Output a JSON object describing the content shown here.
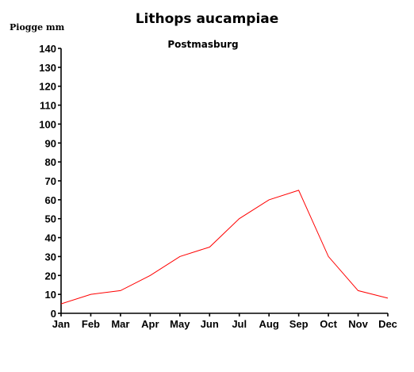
{
  "chart_data": {
    "type": "line",
    "title": "Lithops aucampiae",
    "subtitle": "Postmasburg",
    "ylabel": "Piogge mm",
    "xlabel": "",
    "categories": [
      "Jan",
      "Feb",
      "Mar",
      "Apr",
      "May",
      "Jun",
      "Jul",
      "Aug",
      "Sep",
      "Oct",
      "Nov",
      "Dec"
    ],
    "values": [
      5,
      10,
      12,
      20,
      30,
      35,
      50,
      60,
      65,
      30,
      12,
      8
    ],
    "ylim": [
      0,
      140
    ],
    "yticks": [
      "0",
      "10",
      "20",
      "30",
      "40",
      "50",
      "60",
      "70",
      "80",
      "90",
      "100",
      "110",
      "120",
      "130",
      "140"
    ],
    "grid": false,
    "series_color": "#ff0000"
  }
}
